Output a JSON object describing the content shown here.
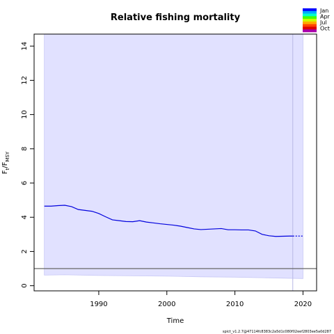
{
  "chart_data": {
    "type": "line",
    "title": "Relative fishing mortality",
    "xlabel": "Time",
    "ylabel": {
      "base": "F",
      "sub1": "t",
      "sep": "/F",
      "sub2": "MSY"
    },
    "xlim": [
      1980.5,
      2022
    ],
    "ylim": [
      -0.3,
      14.7
    ],
    "x_ticks": [
      1990,
      2000,
      2010,
      2020
    ],
    "y_ticks": [
      0,
      2,
      4,
      6,
      8,
      10,
      12,
      14
    ],
    "reference_line": {
      "y": 1,
      "color": "#666666"
    },
    "forecast_start": 2018.5,
    "series": [
      {
        "color": "#0000dd",
        "x": [
          1982,
          1983,
          1984,
          1985,
          1986,
          1987,
          1988,
          1989,
          1990,
          1991,
          1992,
          1993,
          1994,
          1995,
          1996,
          1997,
          1998,
          1999,
          2000,
          2001,
          2002,
          2003,
          2004,
          2005,
          2006,
          2007,
          2008,
          2009,
          2010,
          2011,
          2012,
          2013,
          2014,
          2015,
          2016,
          2017,
          2018,
          2018.5
        ],
        "y": [
          4.65,
          4.65,
          4.68,
          4.7,
          4.62,
          4.45,
          4.4,
          4.35,
          4.22,
          4.03,
          3.85,
          3.8,
          3.75,
          3.74,
          3.8,
          3.72,
          3.67,
          3.62,
          3.58,
          3.54,
          3.48,
          3.4,
          3.32,
          3.28,
          3.3,
          3.32,
          3.34,
          3.27,
          3.27,
          3.26,
          3.26,
          3.2,
          3.0,
          2.92,
          2.88,
          2.89,
          2.9,
          2.9
        ]
      }
    ],
    "forecast": {
      "x": [
        2018.5,
        2020
      ],
      "y": [
        2.9,
        2.9
      ]
    },
    "confidence_band": {
      "color": "#e1e1ff",
      "x": [
        1982,
        1985,
        1990,
        1995,
        2000,
        2005,
        2010,
        2015,
        2020
      ],
      "upper": [
        14.7,
        14.7,
        14.7,
        14.7,
        14.7,
        14.7,
        14.7,
        14.7,
        14.7
      ],
      "lower": [
        0.62,
        0.64,
        0.6,
        0.58,
        0.56,
        0.52,
        0.5,
        0.46,
        0.42
      ]
    },
    "month_legend": {
      "labels": [
        "Jan",
        "Apr",
        "Jul",
        "Oct"
      ],
      "colors": [
        "#0000ff",
        "#00aaff",
        "#00ffcc",
        "#44ff00",
        "#ccff00",
        "#ffaa00",
        "#ff4400",
        "#dd0000",
        "#aa00aa"
      ]
    }
  },
  "footer": "spict_v1.2.7@47114fc8383c2a5d1c080f02eef2803ee5a0d287"
}
